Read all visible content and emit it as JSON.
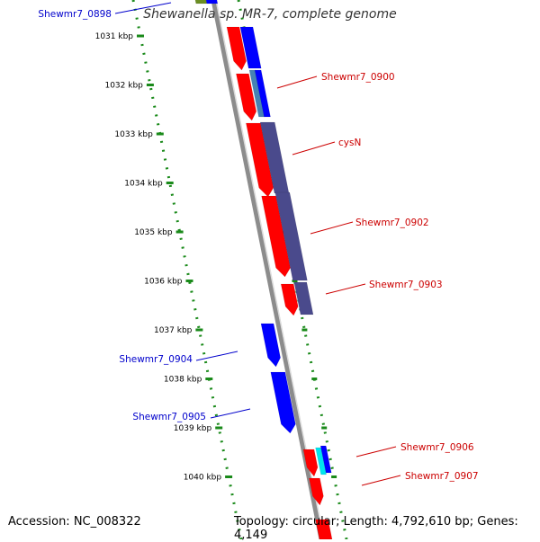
{
  "title": "Shewanella sp. MR-7, complete genome",
  "accession": "Accession: NC_008322",
  "summary": "Topology: circular; Length: 4,792,610 bp; Genes: 4,149",
  "colors": {
    "backbone": "#8c8c8c",
    "tick": "#1a8a1a",
    "forward": "#ff0000",
    "reverse": "#0000ff",
    "label_forward": "#cc0000",
    "label_reverse": "#0000cc",
    "slate": "#4a4a8c",
    "steel": "#4682b4",
    "cyan": "#00e5ee",
    "olive": "#6b8e23"
  },
  "scale_labels": [
    "1031 kbp",
    "1032 kbp",
    "1033 kbp",
    "1034 kbp",
    "1035 kbp",
    "1036 kbp",
    "1037 kbp",
    "1038 kbp",
    "1039 kbp",
    "1040 kbp"
  ],
  "gene_labels": [
    {
      "text": "Shewmr7_0898",
      "strand": "reverse"
    },
    {
      "text": "Shewmr7_0900",
      "strand": "forward"
    },
    {
      "text": "cysN",
      "strand": "forward"
    },
    {
      "text": "Shewmr7_0902",
      "strand": "forward"
    },
    {
      "text": "Shewmr7_0903",
      "strand": "forward"
    },
    {
      "text": "Shewmr7_0904",
      "strand": "reverse"
    },
    {
      "text": "Shewmr7_0905",
      "strand": "reverse"
    },
    {
      "text": "Shewmr7_0906",
      "strand": "forward"
    },
    {
      "text": "Shewmr7_0907",
      "strand": "forward"
    }
  ]
}
